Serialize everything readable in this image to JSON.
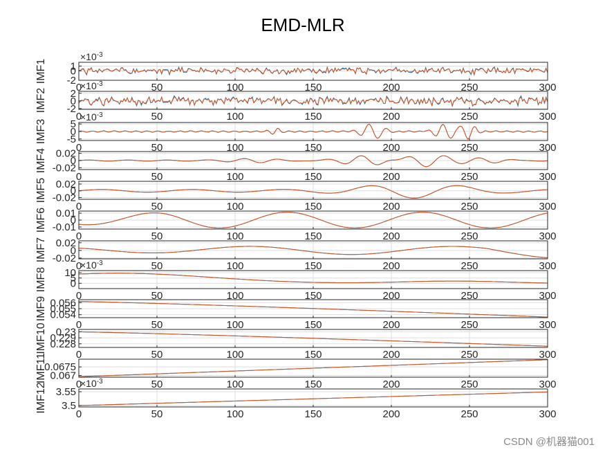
{
  "chart_data": {
    "type": "line",
    "title": "EMD-MLR",
    "xlim": [
      0,
      300
    ],
    "x_ticks": [
      "0",
      "50",
      "100",
      "150",
      "200",
      "250",
      "300"
    ],
    "x_ticks_last_panel_only": false,
    "series_colors": [
      "#0072BD",
      "#D95319"
    ],
    "grid": true,
    "panels": [
      {
        "ylabel": "IMF1",
        "exponent": "×10^-3",
        "ylim": [
          -2,
          1.8
        ],
        "yticks": [
          "1",
          "0",
          "-2"
        ],
        "ytick_values": [
          1,
          0,
          -2
        ],
        "shape": "noise",
        "amp": 0.55,
        "noise_seed": 1
      },
      {
        "ylabel": "IMF2",
        "exponent": "×10^-3",
        "ylim": [
          -2.2,
          2.5
        ],
        "yticks": [
          "2",
          "0",
          "-2"
        ],
        "ytick_values": [
          2,
          0,
          -2
        ],
        "shape": "noise",
        "amp": 0.9,
        "noise_seed": 2
      },
      {
        "ylabel": "IMF3",
        "exponent": "×10^-3",
        "ylim": [
          -6,
          6
        ],
        "yticks": [
          "5",
          "0",
          "-5"
        ],
        "ytick_values": [
          5,
          0,
          -5
        ],
        "shape": "bursts",
        "amp": 5
      },
      {
        "ylabel": "IMF4",
        "exponent": "",
        "ylim": [
          -0.025,
          0.025
        ],
        "yticks": [
          "0.02",
          "0",
          "-0.02"
        ],
        "ytick_values": [
          0.02,
          0,
          -0.02
        ],
        "shape": "imf4"
      },
      {
        "ylabel": "IMF5",
        "exponent": "",
        "ylim": [
          -0.025,
          0.028
        ],
        "yticks": [
          "0.02",
          "0",
          "-0.02"
        ],
        "ytick_values": [
          0.02,
          0,
          -0.02
        ],
        "shape": "imf5"
      },
      {
        "ylabel": "IMF6",
        "exponent": "",
        "ylim": [
          -0.013,
          0.013
        ],
        "yticks": [
          "0.01",
          "0",
          "-0.01"
        ],
        "ytick_values": [
          0.01,
          0,
          -0.01
        ],
        "shape": "imf6"
      },
      {
        "ylabel": "IMF7",
        "exponent": "",
        "ylim": [
          -0.022,
          0.025
        ],
        "yticks": [
          "0.02",
          "0",
          "-0.02"
        ],
        "ytick_values": [
          0.02,
          0,
          -0.02
        ],
        "shape": "imf7"
      },
      {
        "ylabel": "IMF8",
        "exponent": "×10^-3",
        "ylim": [
          -5,
          12
        ],
        "yticks": [
          "10",
          "5",
          "0"
        ],
        "ytick_values": [
          10,
          5,
          0
        ],
        "shape": "imf8"
      },
      {
        "ylabel": "IMF9",
        "exponent": "",
        "ylim": [
          0.0535,
          0.0565
        ],
        "yticks": [
          "0.056",
          "0.055",
          "0.054"
        ],
        "ytick_values": [
          0.056,
          0.055,
          0.054
        ],
        "shape": "linear",
        "start": 0.0562,
        "end": 0.0536
      },
      {
        "ylabel": "IMF10",
        "exponent": "",
        "ylim": [
          0.2274,
          0.2304
        ],
        "yticks": [
          "0.23",
          "0.229",
          "0.228"
        ],
        "ytick_values": [
          0.23,
          0.229,
          0.228
        ],
        "shape": "linear",
        "start": 0.23,
        "end": 0.2276
      },
      {
        "ylabel": "IMF11",
        "exponent": "",
        "ylim": [
          0.0669,
          0.06795
        ],
        "yticks": [
          "0.0675",
          "0.067"
        ],
        "ytick_values": [
          0.0675,
          0.067
        ],
        "shape": "linear",
        "start": 0.06693,
        "end": 0.06792
      },
      {
        "ylabel": "IMF12",
        "exponent": "×10^-3",
        "ylim": [
          3.495,
          3.56
        ],
        "yticks": [
          "3.55",
          "3.5"
        ],
        "ytick_values": [
          3.55,
          3.5
        ],
        "shape": "linear",
        "start": 3.5,
        "end": 3.549
      }
    ]
  },
  "watermark": "CSDN @机器猫001"
}
